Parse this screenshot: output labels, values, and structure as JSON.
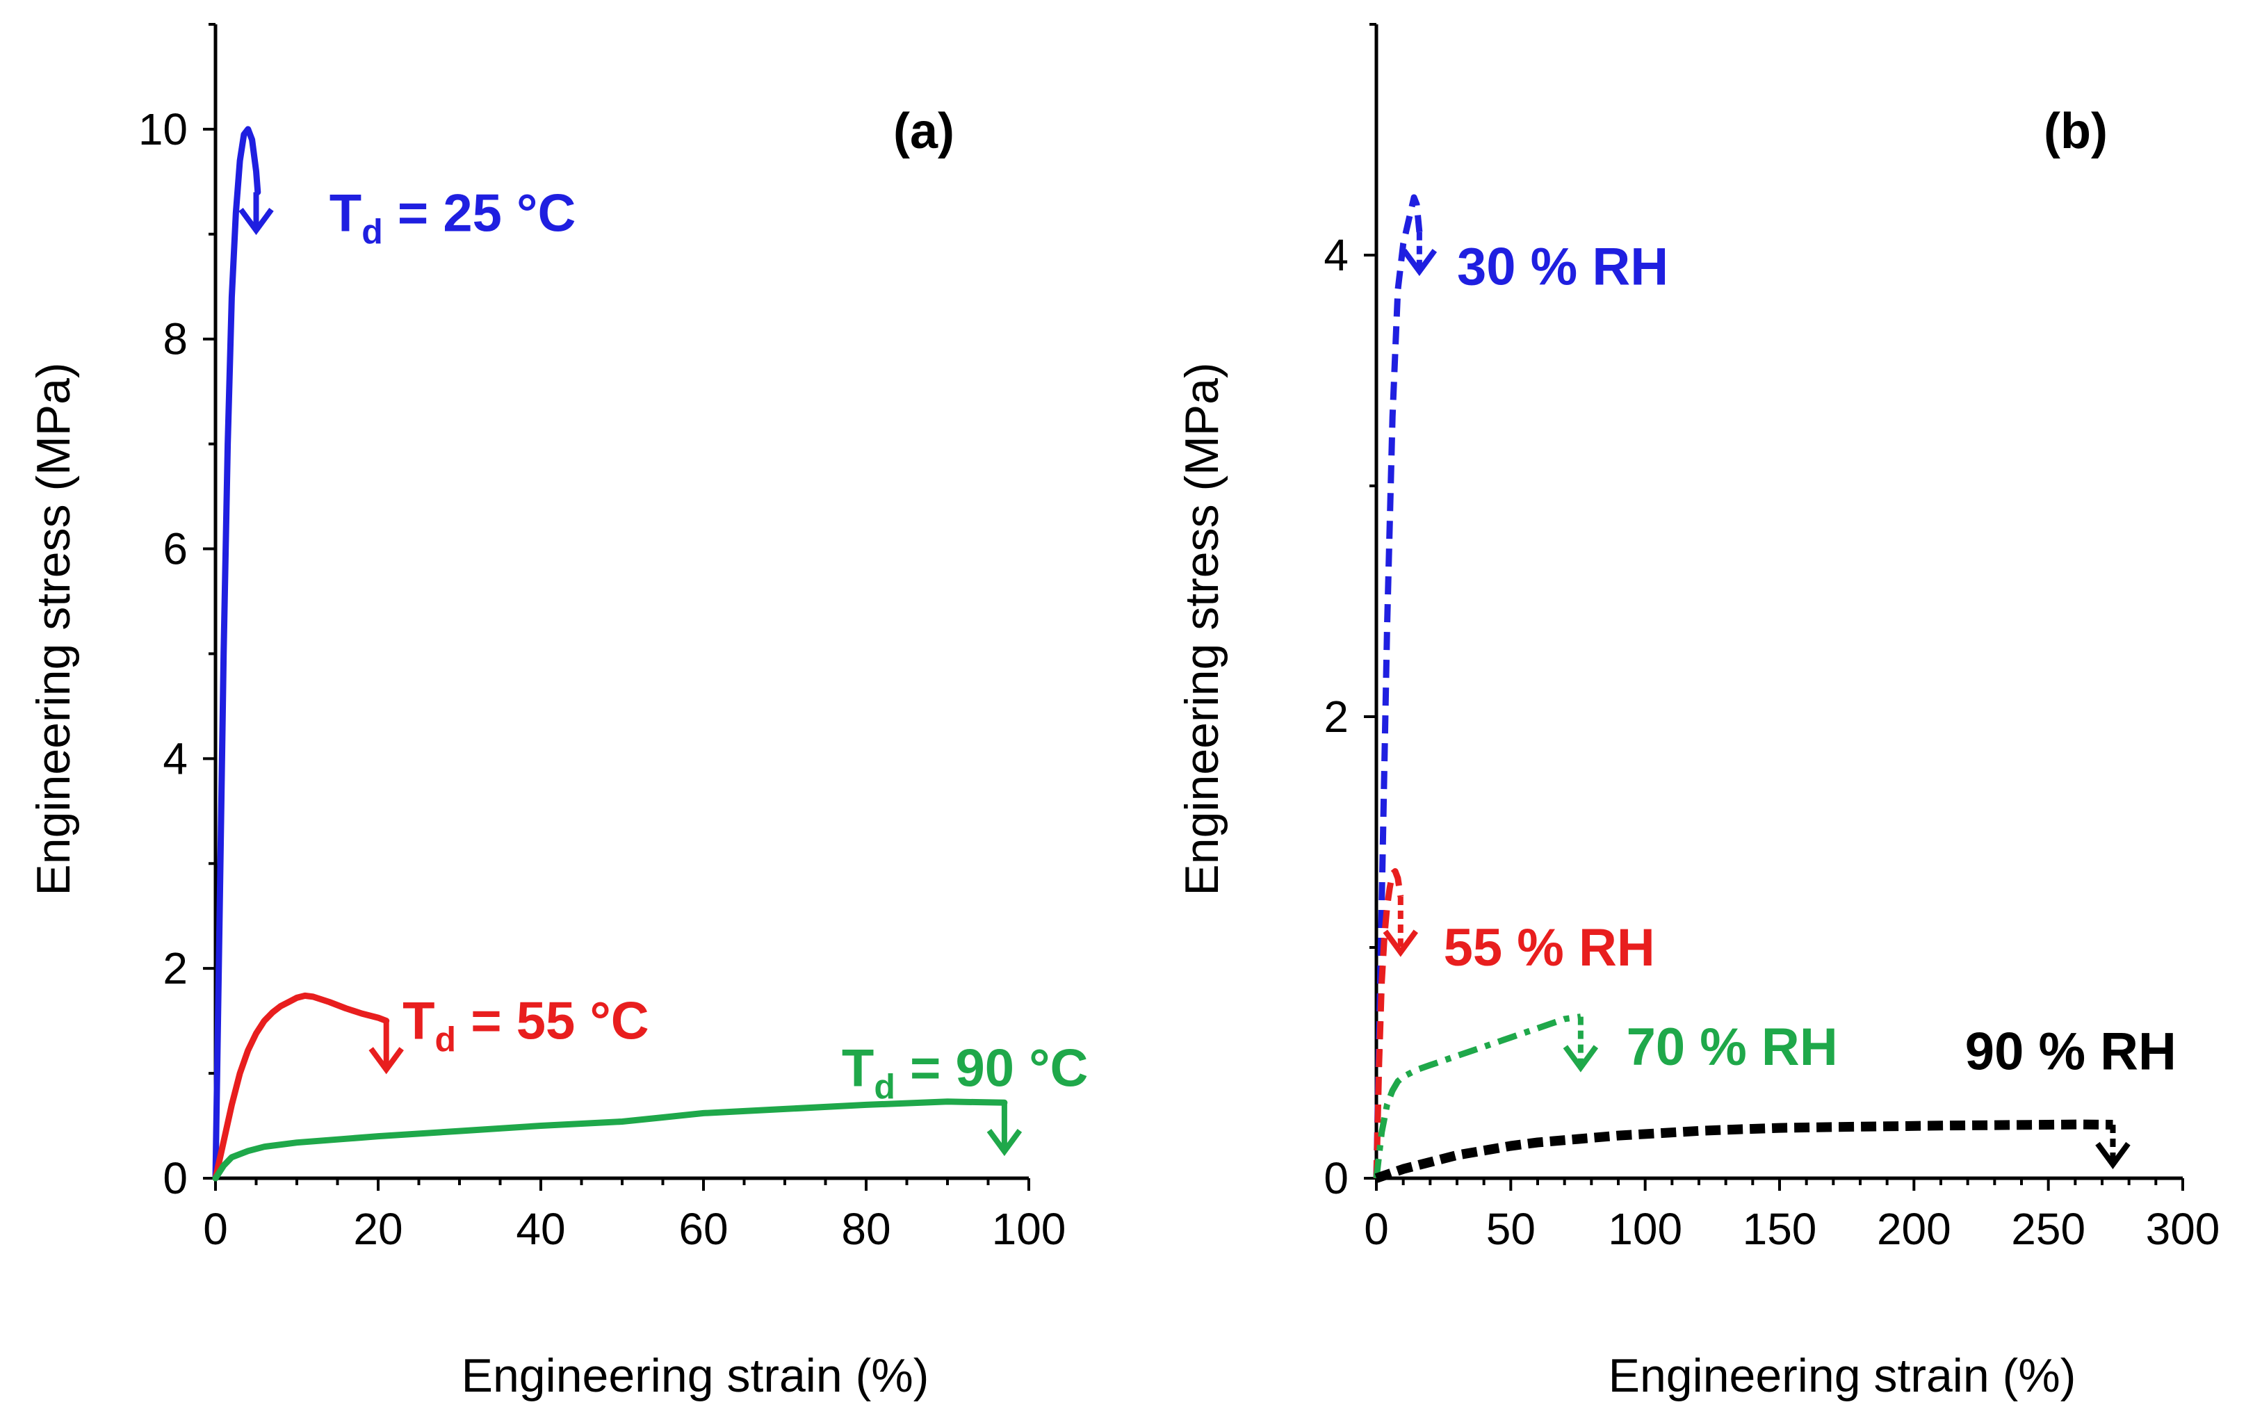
{
  "chart_data": [
    {
      "type": "line",
      "panel_label": "(a)",
      "xlabel": "Engineering strain (%)",
      "ylabel": "Engineering stress (MPa)",
      "xlim": [
        0,
        100
      ],
      "ylim": [
        0,
        11
      ],
      "xticks": [
        0,
        20,
        40,
        60,
        80,
        100
      ],
      "yticks": [
        0,
        2,
        4,
        6,
        8,
        10
      ],
      "xtick_labels": [
        "0",
        "20",
        "40",
        "60",
        "80",
        "100"
      ],
      "ytick_labels": [
        "0",
        "2",
        "4",
        "6",
        "8",
        "10"
      ],
      "series": [
        {
          "name": "Td = 25 °C",
          "label_main": "T",
          "label_sub": "d",
          "label_rest": " = 25 °C",
          "color": "#1f1fe0",
          "dash": "solid",
          "x": [
            0,
            0.5,
            1,
            1.5,
            2,
            2.5,
            3,
            3.5,
            4,
            4.5,
            5,
            5.2
          ],
          "y": [
            0,
            2.5,
            5,
            7,
            8.4,
            9.2,
            9.7,
            9.95,
            10.0,
            9.9,
            9.6,
            9.4
          ],
          "break_at": [
            5,
            9.5
          ],
          "label_anchor": [
            14,
            9.2
          ]
        },
        {
          "name": "Td = 55 °C",
          "label_main": "T",
          "label_sub": "d",
          "label_rest": " = 55 °C",
          "color": "#e81e1e",
          "dash": "solid",
          "x": [
            0,
            1,
            2,
            3,
            4,
            5,
            6,
            7,
            8,
            9,
            10,
            11,
            12,
            14,
            16,
            18,
            20,
            21
          ],
          "y": [
            0,
            0.35,
            0.7,
            1.0,
            1.22,
            1.38,
            1.5,
            1.58,
            1.64,
            1.68,
            1.72,
            1.74,
            1.73,
            1.68,
            1.62,
            1.57,
            1.53,
            1.5
          ],
          "break_at": [
            21,
            1.5
          ],
          "label_anchor": [
            23,
            1.5
          ]
        },
        {
          "name": "Td = 90 °C",
          "label_main": "T",
          "label_sub": "d",
          "label_rest": " = 90 °C",
          "color": "#1fa84a",
          "dash": "solid",
          "x": [
            0,
            1,
            2,
            4,
            6,
            10,
            15,
            20,
            30,
            40,
            50,
            55,
            60,
            70,
            80,
            90,
            97
          ],
          "y": [
            0,
            0.12,
            0.2,
            0.26,
            0.3,
            0.34,
            0.37,
            0.4,
            0.45,
            0.5,
            0.54,
            0.58,
            0.62,
            0.66,
            0.7,
            0.73,
            0.72
          ],
          "break_at": [
            97,
            0.72
          ],
          "label_anchor": [
            77,
            1.05
          ]
        }
      ]
    },
    {
      "type": "line",
      "panel_label": "(b)",
      "xlabel": "Engineering strain (%)",
      "ylabel": "Engineering stress (MPa)",
      "xlim": [
        0,
        300
      ],
      "ylim": [
        0,
        5
      ],
      "xticks": [
        0,
        50,
        100,
        150,
        200,
        250,
        300
      ],
      "yticks": [
        0,
        2,
        4
      ],
      "xtick_labels": [
        "0",
        "50",
        "100",
        "150",
        "200",
        "250",
        "300"
      ],
      "ytick_labels": [
        "0",
        "2",
        "4"
      ],
      "series": [
        {
          "name": "30 % RH",
          "label_main": "30 % RH",
          "color": "#1f1fe0",
          "dash": "dashed",
          "x": [
            0,
            2,
            4,
            6,
            8,
            10,
            12,
            14,
            15,
            16
          ],
          "y": [
            0,
            1.2,
            2.4,
            3.3,
            3.85,
            4.05,
            4.15,
            4.25,
            4.22,
            4.1
          ],
          "break_at": [
            16,
            4.05
          ],
          "label_anchor": [
            30,
            3.95
          ]
        },
        {
          "name": "55 % RH",
          "label_main": "55 % RH",
          "color": "#e81e1e",
          "dash": "dashed",
          "x": [
            0,
            1,
            2,
            3,
            4,
            5,
            6,
            7,
            8,
            9
          ],
          "y": [
            0,
            0.5,
            0.85,
            1.05,
            1.18,
            1.26,
            1.32,
            1.33,
            1.3,
            1.22
          ],
          "break_at": [
            9,
            1.1
          ],
          "label_anchor": [
            25,
            1.0
          ]
        },
        {
          "name": "70 % RH",
          "label_main": "70 % RH",
          "color": "#1fa84a",
          "dash": "dashdot",
          "x": [
            0,
            2,
            4,
            6,
            8,
            10,
            15,
            20,
            30,
            40,
            50,
            60,
            70,
            76
          ],
          "y": [
            0,
            0.2,
            0.32,
            0.38,
            0.42,
            0.44,
            0.47,
            0.49,
            0.53,
            0.57,
            0.61,
            0.65,
            0.69,
            0.7
          ],
          "break_at": [
            76,
            0.6
          ],
          "label_anchor": [
            93,
            0.57
          ]
        },
        {
          "name": "90 % RH",
          "label_main": "90 % RH",
          "color": "#000000",
          "dash": "thickdash",
          "x": [
            0,
            5,
            10,
            20,
            30,
            40,
            50,
            60,
            75,
            90,
            105,
            120,
            135,
            150,
            170,
            190,
            210,
            230,
            250,
            262,
            274
          ],
          "y": [
            0,
            0.02,
            0.04,
            0.07,
            0.1,
            0.12,
            0.14,
            0.155,
            0.17,
            0.185,
            0.195,
            0.205,
            0.212,
            0.218,
            0.222,
            0.225,
            0.228,
            0.23,
            0.232,
            0.233,
            0.232
          ],
          "break_at": [
            274,
            0.18
          ],
          "label_anchor": [
            219,
            0.55
          ]
        }
      ]
    }
  ]
}
